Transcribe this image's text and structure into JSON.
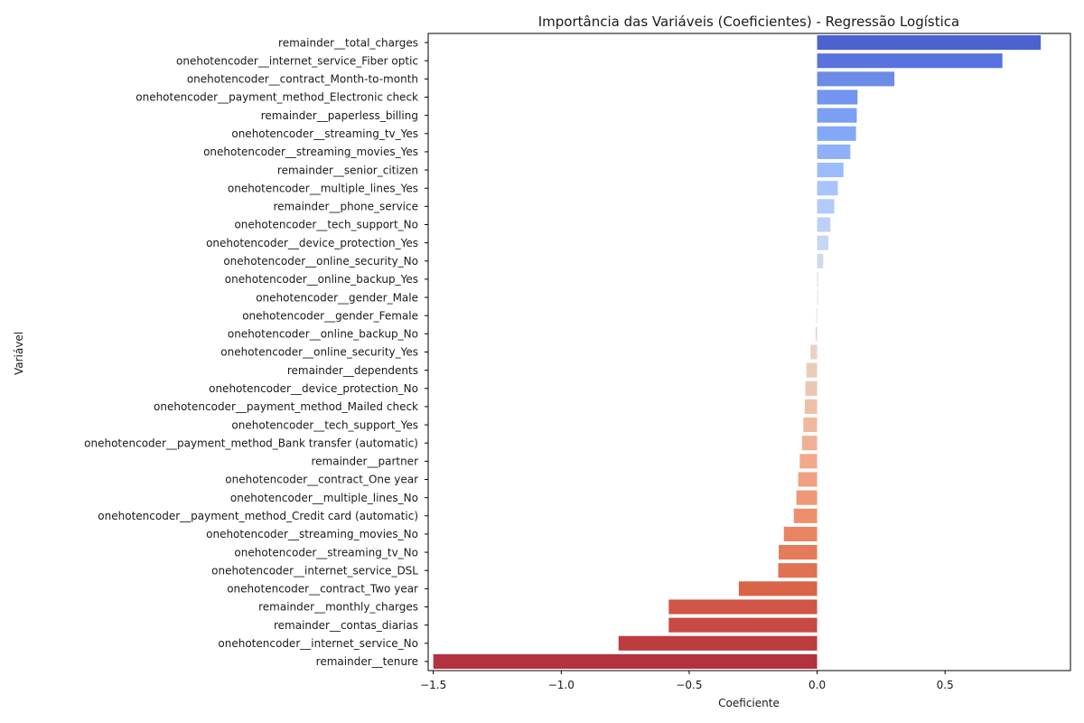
{
  "chart_data": {
    "type": "bar",
    "orientation": "horizontal",
    "title": "Importância das Variáveis (Coeficientes) - Regressão Logística",
    "xlabel": "Coeficiente",
    "ylabel": "Variável",
    "xlim": [
      -1.52,
      0.99
    ],
    "xticks": [
      -1.5,
      -1.0,
      -0.5,
      0.0,
      0.5
    ],
    "xtick_labels": [
      "−1.5",
      "−1.0",
      "−0.5",
      "0.0",
      "0.5"
    ],
    "grid": false,
    "palette": "coolwarm",
    "categories": [
      "remainder__total_charges",
      "onehotencoder__internet_service_Fiber optic",
      "onehotencoder__contract_Month-to-month",
      "onehotencoder__payment_method_Electronic check",
      "remainder__paperless_billing",
      "onehotencoder__streaming_tv_Yes",
      "onehotencoder__streaming_movies_Yes",
      "remainder__senior_citizen",
      "onehotencoder__multiple_lines_Yes",
      "remainder__phone_service",
      "onehotencoder__tech_support_No",
      "onehotencoder__device_protection_Yes",
      "onehotencoder__online_security_No",
      "onehotencoder__online_backup_Yes",
      "onehotencoder__gender_Male",
      "onehotencoder__gender_Female",
      "onehotencoder__online_backup_No",
      "onehotencoder__online_security_Yes",
      "remainder__dependents",
      "onehotencoder__device_protection_No",
      "onehotencoder__payment_method_Mailed check",
      "onehotencoder__tech_support_Yes",
      "onehotencoder__payment_method_Bank transfer (automatic)",
      "remainder__partner",
      "onehotencoder__contract_One year",
      "onehotencoder__multiple_lines_No",
      "onehotencoder__payment_method_Credit card (automatic)",
      "onehotencoder__streaming_movies_No",
      "onehotencoder__streaming_tv_No",
      "onehotencoder__internet_service_DSL",
      "onehotencoder__contract_Two year",
      "remainder__monthly_charges",
      "remainder__contas_diarias",
      "onehotencoder__internet_service_No",
      "remainder__tenure"
    ],
    "values": [
      0.874,
      0.724,
      0.302,
      0.158,
      0.155,
      0.152,
      0.13,
      0.103,
      0.081,
      0.067,
      0.052,
      0.044,
      0.024,
      0.004,
      0.003,
      -0.003,
      -0.006,
      -0.026,
      -0.042,
      -0.046,
      -0.048,
      -0.054,
      -0.059,
      -0.068,
      -0.074,
      -0.081,
      -0.091,
      -0.13,
      -0.15,
      -0.152,
      -0.306,
      -0.58,
      -0.58,
      -0.776,
      -1.5
    ],
    "colors": [
      "#4b62d1",
      "#5872df",
      "#6a8ce7",
      "#7295ef",
      "#7b9ff4",
      "#84a8f8",
      "#8fb1fb",
      "#9bbcfd",
      "#a7c4fd",
      "#b2cbfb",
      "#bdd1f8",
      "#c6d6f3",
      "#d0daee",
      "#d9dde8",
      "#dddcdc",
      "#e1dad5",
      "#e5d6cd",
      "#e8d1c4",
      "#ebccbb",
      "#edc6b2",
      "#efbfa8",
      "#f0b89e",
      "#f1b194",
      "#f1a98a",
      "#f0a180",
      "#ef9877",
      "#ed8f6d",
      "#ea8564",
      "#e67b5a",
      "#e17151",
      "#d96448",
      "#cf5546",
      "#c74a44",
      "#bc3d3f",
      "#b2323f"
    ]
  }
}
